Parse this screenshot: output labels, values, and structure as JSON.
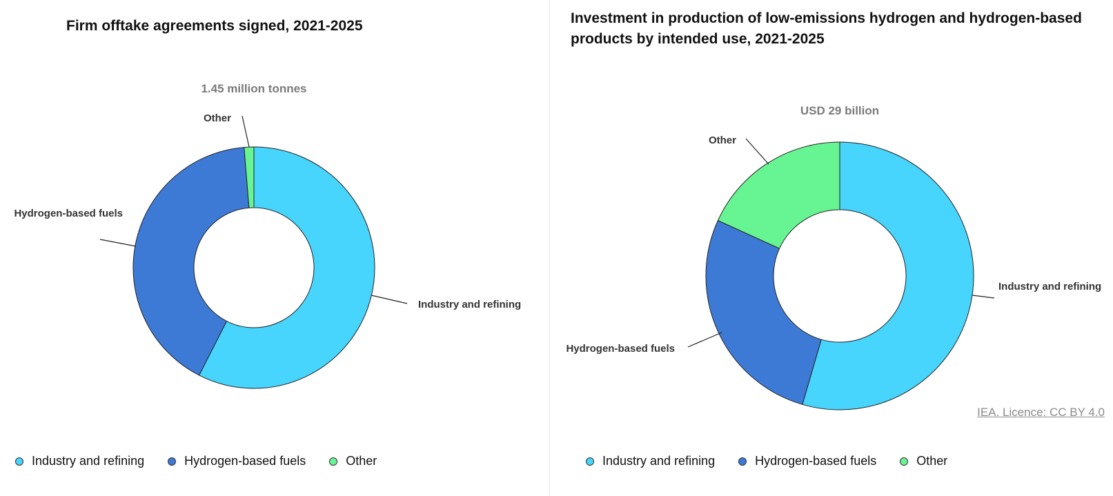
{
  "colors": {
    "industry": "#47d4fd",
    "hydrogen_fuels": "#3d7ad6",
    "other": "#67f593"
  },
  "chart_data": [
    {
      "type": "pie",
      "title": "Firm offtake agreements signed, 2021-2025",
      "total_label": "1.45 million tonnes",
      "categories": [
        "Industry and refining",
        "Hydrogen-based fuels",
        "Other"
      ],
      "values": [
        57.5,
        41.2,
        1.3
      ],
      "unit": "%",
      "legend": "bottom"
    },
    {
      "type": "pie",
      "title": "Investment in production of low-emissions hydrogen and hydrogen-based products by intended use, 2021-2025",
      "total_label": "USD 29 billion",
      "categories": [
        "Industry and refining",
        "Hydrogen-based fuels",
        "Other"
      ],
      "values": [
        54.5,
        27.3,
        18.2
      ],
      "unit": "%",
      "legend": "bottom"
    }
  ],
  "credit": "IEA. Licence: CC BY 4.0"
}
